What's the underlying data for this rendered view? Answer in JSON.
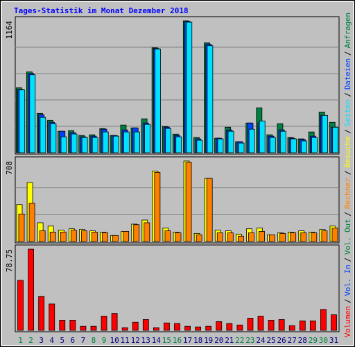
{
  "title": "Tages-Statistik im Monat Dezember 2018",
  "categories": [
    "1",
    "2",
    "3",
    "4",
    "5",
    "6",
    "7",
    "8",
    "9",
    "10",
    "11",
    "12",
    "13",
    "14",
    "15",
    "16",
    "17",
    "18",
    "19",
    "20",
    "21",
    "22",
    "23",
    "24",
    "25",
    "26",
    "27",
    "28",
    "29",
    "30",
    "31"
  ],
  "category_colors": [
    "#008040",
    "#008040",
    "#000080",
    "#000080",
    "#000080",
    "#000080",
    "#000080",
    "#008040",
    "#008040",
    "#000080",
    "#000080",
    "#000080",
    "#000080",
    "#000080",
    "#008040",
    "#008040",
    "#000080",
    "#000080",
    "#000080",
    "#000080",
    "#000080",
    "#008040",
    "#008040",
    "#000080",
    "#000080",
    "#000080",
    "#000080",
    "#000080",
    "#008040",
    "#008040",
    "#000080"
  ],
  "legend_separator": "/",
  "legend_extra": [
    {
      "name": "Vol. In",
      "color": "#0040ff"
    },
    {
      "name": "Vol. Out",
      "color": "#008040"
    }
  ],
  "chart_data": [
    {
      "type": "bar",
      "ylim": [
        0,
        1164
      ],
      "yticks": [
        1164
      ],
      "grid_lines": 4,
      "series": [
        {
          "name": "Anfragen",
          "color": "#008040",
          "values": [
            573,
            713,
            347,
            286,
            189,
            195,
            152,
            158,
            213,
            152,
            244,
            219,
            299,
            926,
            231,
            164,
            1164,
            134,
            969,
            128,
            225,
            97,
            262,
            396,
            158,
            256,
            134,
            122,
            183,
            359,
            268
          ]
        },
        {
          "name": "Dateien",
          "color": "#0040ff",
          "values": [
            560,
            700,
            335,
            268,
            189,
            177,
            140,
            146,
            207,
            152,
            201,
            219,
            262,
            920,
            225,
            152,
            1158,
            122,
            957,
            128,
            201,
            97,
            262,
            262,
            146,
            201,
            128,
            116,
            146,
            329,
            225
          ]
        },
        {
          "name": "Seiten",
          "color": "#00e0ff",
          "values": [
            555,
            688,
            311,
            256,
            140,
            165,
            134,
            134,
            183,
            146,
            183,
            183,
            250,
            914,
            213,
            140,
            1152,
            110,
            945,
            122,
            189,
            85,
            207,
            280,
            134,
            189,
            122,
            104,
            134,
            329,
            225
          ]
        }
      ]
    },
    {
      "type": "bar",
      "ylim": [
        0,
        708
      ],
      "yticks": [
        708
      ],
      "grid_lines": 2,
      "series": [
        {
          "name": "Besuche",
          "color": "#ffff00",
          "values": [
            325,
            519,
            165,
            136,
            100,
            112,
            106,
            94,
            83,
            53,
            89,
            153,
            189,
            619,
            118,
            83,
            708,
            71,
            555,
            100,
            94,
            65,
            112,
            118,
            59,
            77,
            83,
            94,
            83,
            106,
            136
          ]
        },
        {
          "name": "Rechner",
          "color": "#ff8000",
          "values": [
            242,
            336,
            94,
            83,
            83,
            100,
            94,
            83,
            77,
            53,
            89,
            148,
            165,
            608,
            94,
            77,
            696,
            59,
            555,
            77,
            77,
            47,
            77,
            89,
            59,
            71,
            77,
            77,
            77,
            94,
            118
          ]
        }
      ]
    },
    {
      "type": "bar",
      "ylim": [
        0,
        78.75
      ],
      "yticks": [
        78.75
      ],
      "grid_lines": 0,
      "series": [
        {
          "name": "Volumen",
          "color": "#ff0000",
          "values": [
            48.5,
            78.75,
            32.8,
            25.6,
            9.8,
            9.8,
            3.9,
            3.9,
            13.8,
            16.4,
            2.6,
            7.9,
            10.5,
            2.6,
            7.2,
            6.6,
            3.9,
            3.3,
            3.9,
            8.5,
            6.6,
            5.2,
            11.8,
            13.8,
            9.8,
            10.5,
            4.6,
            9.2,
            9.2,
            20.3,
            15.1
          ]
        }
      ]
    }
  ]
}
